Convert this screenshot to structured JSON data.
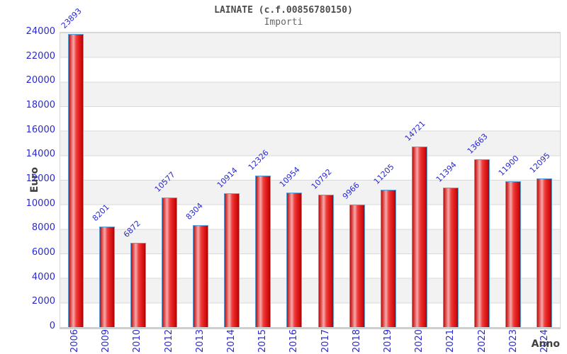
{
  "chart_data": {
    "type": "bar",
    "title": "LAINATE (c.f.00856780150)",
    "subtitle": "Importi",
    "xlabel": "Anno",
    "ylabel": "Euro",
    "categories": [
      "2006",
      "2009",
      "2010",
      "2012",
      "2013",
      "2014",
      "2015",
      "2016",
      "2017",
      "2018",
      "2019",
      "2020",
      "2021",
      "2022",
      "2023",
      "2024"
    ],
    "values": [
      23893,
      8201,
      6872,
      10577,
      8304,
      10914,
      12326,
      10954,
      10792,
      9966,
      11205,
      14721,
      11394,
      13663,
      11900,
      12095
    ],
    "ylim": [
      0,
      24000
    ],
    "ytick_step": 2000,
    "grid": true,
    "legend_position": "none",
    "background_bands": "alternating white / light-gray every 2000"
  },
  "colors": {
    "label_blue": "#2a2ad0",
    "bar_red": "#e52020",
    "bar_highlight": "#f5abab",
    "bar_outline": "#58a0d8",
    "band_gray": "#f2f2f2",
    "grid_line": "#d9d9d9",
    "title_gray": "#4d4d4d",
    "subtitle_gray": "#666666",
    "axis_label_gray": "#404040"
  }
}
